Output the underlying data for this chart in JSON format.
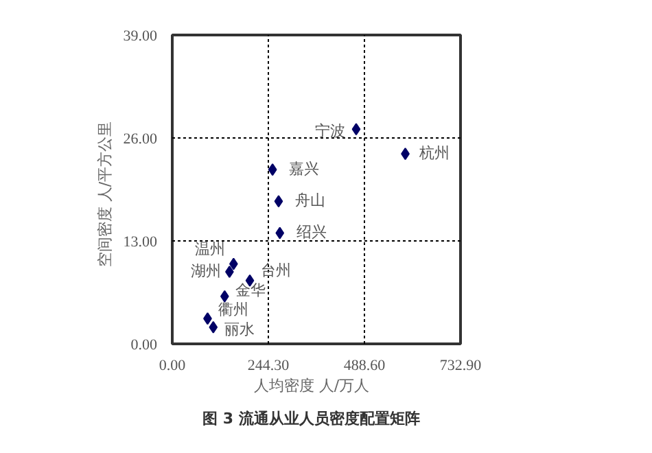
{
  "chart_data": {
    "type": "scatter",
    "title": "图 3   流通从业人员密度配置矩阵",
    "xlabel": "人均密度   人/万人",
    "ylabel": "空间密度   人/平方公里",
    "x": [
      467.6,
      592.5,
      255.0,
      270.4,
      273.5,
      155.9,
      145.5,
      197.2,
      133.2,
      89.8,
      104.3
    ],
    "series": [
      {
        "color": "#000066",
        "values": [
          27.1,
          24.0,
          22.0,
          18.0,
          14.0,
          10.1,
          9.1,
          8.0,
          6.0,
          3.2,
          2.1
        ]
      }
    ],
    "annotations": [
      {
        "text": "宁波",
        "x": 467.6,
        "y": 27.1
      },
      {
        "text": "杭州",
        "x": 592.5,
        "y": 24.0
      },
      {
        "text": "嘉兴",
        "x": 255.0,
        "y": 22.0
      },
      {
        "text": "舟山",
        "x": 270.4,
        "y": 18.0
      },
      {
        "text": "绍兴",
        "x": 273.5,
        "y": 14.0
      },
      {
        "text": "温州",
        "x": 155.9,
        "y": 10.1
      },
      {
        "text": "台州",
        "x": 197.2,
        "y": 8.0
      },
      {
        "text": "金华",
        "x": 133.2,
        "y": 6.0
      },
      {
        "text": "湖州",
        "x": 145.5,
        "y": 9.1
      },
      {
        "text": "衢州",
        "x": 89.8,
        "y": 3.2
      },
      {
        "text": "丽水",
        "x": 104.3,
        "y": 2.1
      }
    ],
    "xlim": [
      0,
      732.9
    ],
    "ylim": [
      0,
      39
    ],
    "xticks": [
      {
        "value": 0,
        "label": "0.00"
      },
      {
        "value": 244.3,
        "label": "244.30"
      },
      {
        "value": 488.6,
        "label": "488.60"
      },
      {
        "value": 732.9,
        "label": "732.90"
      }
    ],
    "yticks": [
      {
        "value": 0,
        "label": "0.00"
      },
      {
        "value": 13,
        "label": "13.00"
      },
      {
        "value": 26,
        "label": "26.00"
      },
      {
        "value": 39,
        "label": "39.00"
      }
    ],
    "grid": true,
    "marker": "diamond"
  }
}
